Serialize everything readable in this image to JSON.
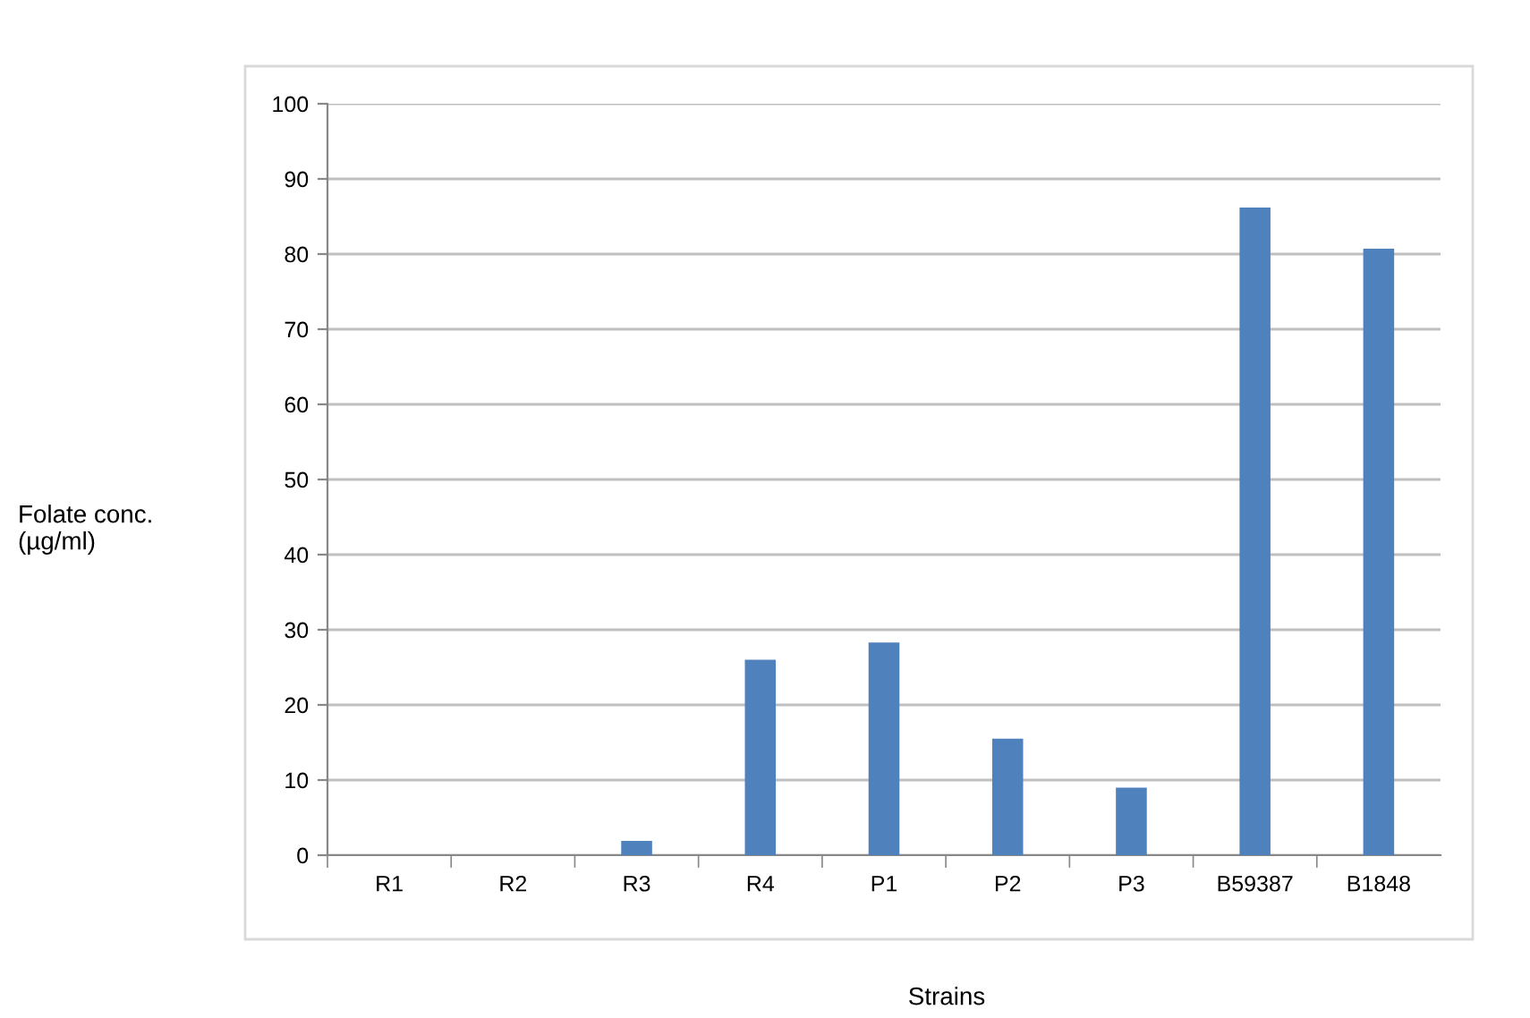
{
  "chart_data": {
    "type": "bar",
    "xlabel": "Strains",
    "ylabel": "Folate conc.\n(µg/ml)",
    "categories": [
      "R1",
      "R2",
      "R3",
      "R4",
      "P1",
      "P2",
      "P3",
      "B59387",
      "B1848"
    ],
    "values": [
      0,
      0,
      1.9,
      26.0,
      28.3,
      15.5,
      9.0,
      86.2,
      80.7
    ],
    "color": "#4f81bd",
    "ylim": [
      0,
      100
    ],
    "yticks": [
      0,
      10,
      20,
      30,
      40,
      50,
      60,
      70,
      80,
      90,
      100
    ],
    "grid": "y",
    "legend": false
  }
}
